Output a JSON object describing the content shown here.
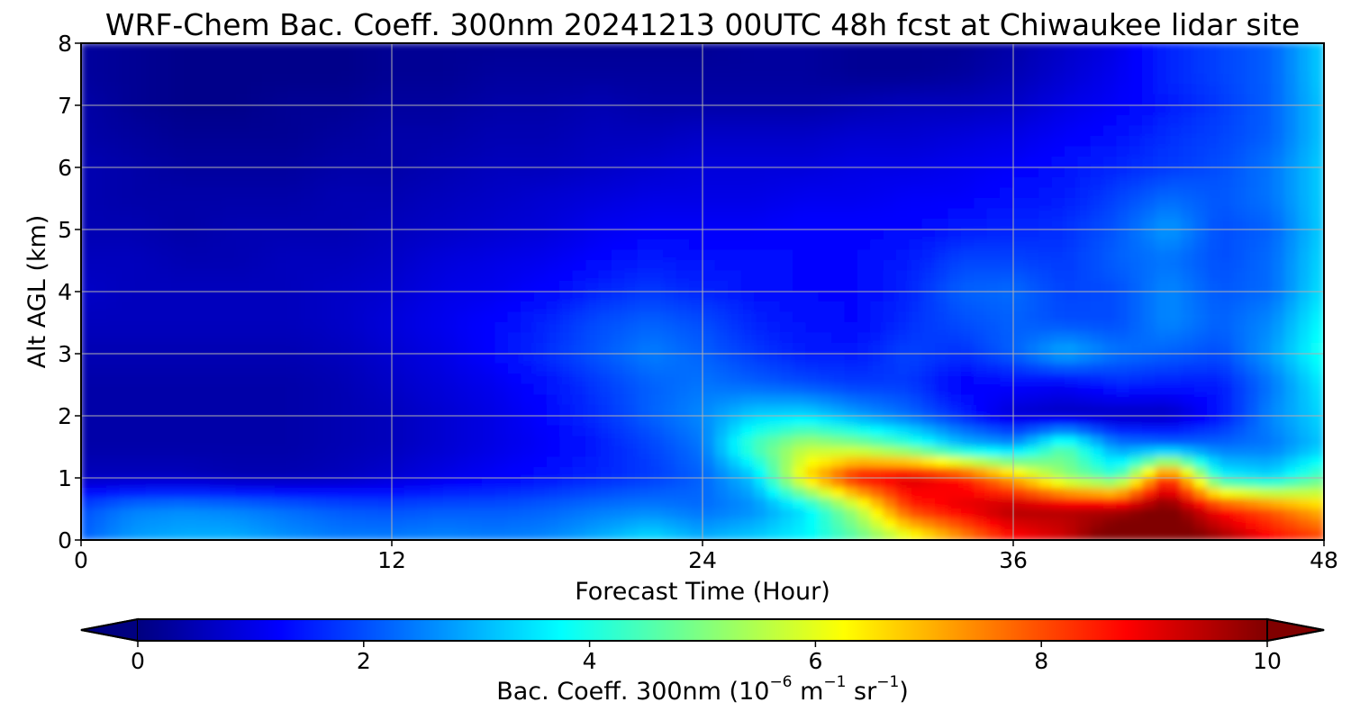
{
  "chart_data": {
    "type": "heatmap",
    "title": "WRF-Chem Bac. Coeff. 300nm  20241213 00UTC 48h fcst at Chiwaukee lidar site",
    "xlabel": "Forecast Time (Hour)",
    "ylabel": "Alt AGL (km)",
    "xlim": [
      0,
      48
    ],
    "ylim": [
      0,
      8
    ],
    "xticks": [
      0,
      12,
      24,
      36,
      48
    ],
    "yticks": [
      0,
      1,
      2,
      3,
      4,
      5,
      6,
      7,
      8
    ],
    "grid": true,
    "colormap": "jet",
    "colorbar": {
      "label_main": "Bac. Coeff. 300nm  (10",
      "exp1": "−6",
      "unit_m": " m",
      "exp2": "−1",
      "unit_sr": " sr",
      "exp3": "−1",
      "label_end": ")",
      "range": [
        0,
        10
      ],
      "ticks": [
        0,
        2,
        4,
        6,
        8,
        10
      ],
      "extend": "both",
      "orientation": "horizontal-bottom"
    },
    "x_hours": [
      0,
      2,
      4,
      6,
      8,
      10,
      12,
      14,
      16,
      18,
      20,
      22,
      24,
      26,
      28,
      30,
      32,
      34,
      36,
      38,
      40,
      42,
      44,
      46,
      48
    ],
    "y_km": [
      0,
      0.5,
      1,
      1.5,
      2,
      2.5,
      3,
      3.5,
      4,
      4.5,
      5,
      5.5,
      6,
      6.5,
      7,
      7.5,
      8
    ],
    "z": [
      [
        2.2,
        2.8,
        3.0,
        3.0,
        2.7,
        2.5,
        2.5,
        2.6,
        2.5,
        2.6,
        3.0,
        3.5,
        3.0,
        3.3,
        3.7,
        4.6,
        5.8,
        7.2,
        8.6,
        9.2,
        10.5,
        10.5,
        9.8,
        8.8,
        8.2
      ],
      [
        2.0,
        2.5,
        2.6,
        2.5,
        2.3,
        2.1,
        2.0,
        2.1,
        2.1,
        2.2,
        2.4,
        2.5,
        2.3,
        2.6,
        3.5,
        5.5,
        8.3,
        9.0,
        9.6,
        9.5,
        9.5,
        10.2,
        8.6,
        7.8,
        6.8
      ],
      [
        0.6,
        0.6,
        0.6,
        0.5,
        0.5,
        0.6,
        0.8,
        1.0,
        1.2,
        1.4,
        1.6,
        1.8,
        2.2,
        3.2,
        6.6,
        8.8,
        9.2,
        8.6,
        7.0,
        5.2,
        4.3,
        8.5,
        3.8,
        3.4,
        4.6
      ],
      [
        0.4,
        0.4,
        0.4,
        0.4,
        0.4,
        0.5,
        0.6,
        0.8,
        1.0,
        1.2,
        1.5,
        1.9,
        2.4,
        4.5,
        5.6,
        5.2,
        4.4,
        3.2,
        2.8,
        4.6,
        2.6,
        2.4,
        2.3,
        2.4,
        3.2
      ],
      [
        0.4,
        0.4,
        0.4,
        0.4,
        0.4,
        0.5,
        0.6,
        0.8,
        1.0,
        1.3,
        1.7,
        2.2,
        2.6,
        3.3,
        3.4,
        2.8,
        2.3,
        1.6,
        0.8,
        0.6,
        0.6,
        0.6,
        1.4,
        2.6,
        3.4
      ],
      [
        0.4,
        0.4,
        0.4,
        0.4,
        0.4,
        0.5,
        0.7,
        0.9,
        1.1,
        1.4,
        1.8,
        2.2,
        2.4,
        2.2,
        2.0,
        1.8,
        1.8,
        1.2,
        1.3,
        1.2,
        1.6,
        1.5,
        1.5,
        2.4,
        3.6
      ],
      [
        0.5,
        0.5,
        0.5,
        0.5,
        0.5,
        0.6,
        0.8,
        1.0,
        1.3,
        1.7,
        2.1,
        2.5,
        2.2,
        1.8,
        1.5,
        1.5,
        1.9,
        1.7,
        2.2,
        3.0,
        2.4,
        2.2,
        2.0,
        2.8,
        4.0
      ],
      [
        0.6,
        0.6,
        0.6,
        0.6,
        0.6,
        0.7,
        0.9,
        1.1,
        1.3,
        1.6,
        2.0,
        2.2,
        2.0,
        1.6,
        1.4,
        1.3,
        1.7,
        2.0,
        2.2,
        2.0,
        2.0,
        2.6,
        2.2,
        2.6,
        3.8
      ],
      [
        0.7,
        0.6,
        0.6,
        0.6,
        0.6,
        0.7,
        0.8,
        1.0,
        1.1,
        1.3,
        1.6,
        1.8,
        1.6,
        1.4,
        1.3,
        1.3,
        1.6,
        2.2,
        2.3,
        1.9,
        2.0,
        2.6,
        2.1,
        2.3,
        3.5
      ],
      [
        0.6,
        0.6,
        0.5,
        0.5,
        0.6,
        0.6,
        0.7,
        0.9,
        1.0,
        1.1,
        1.3,
        1.5,
        1.4,
        1.4,
        1.3,
        1.3,
        1.5,
        1.9,
        1.9,
        1.8,
        2.2,
        2.4,
        2.0,
        2.3,
        3.4
      ],
      [
        0.5,
        0.5,
        0.4,
        0.5,
        0.5,
        0.5,
        0.6,
        0.7,
        0.8,
        0.9,
        1.1,
        1.2,
        1.2,
        1.2,
        1.3,
        1.3,
        1.3,
        1.5,
        1.6,
        1.7,
        2.1,
        2.8,
        2.0,
        2.2,
        3.3
      ],
      [
        0.5,
        0.4,
        0.4,
        0.4,
        0.4,
        0.5,
        0.5,
        0.6,
        0.7,
        0.8,
        0.9,
        1.0,
        1.0,
        1.0,
        1.1,
        1.1,
        1.2,
        1.2,
        1.4,
        1.5,
        1.9,
        2.3,
        2.1,
        2.4,
        3.3
      ],
      [
        0.5,
        0.4,
        0.3,
        0.3,
        0.3,
        0.4,
        0.4,
        0.5,
        0.6,
        0.6,
        0.7,
        0.8,
        0.9,
        0.9,
        0.9,
        1.0,
        1.0,
        1.1,
        1.2,
        1.4,
        1.6,
        1.8,
        2.0,
        2.4,
        3.3
      ],
      [
        0.4,
        0.3,
        0.2,
        0.2,
        0.2,
        0.3,
        0.4,
        0.4,
        0.5,
        0.5,
        0.6,
        0.6,
        0.7,
        0.7,
        0.7,
        0.8,
        0.8,
        0.9,
        1.0,
        1.2,
        1.4,
        1.7,
        1.9,
        2.2,
        3.2
      ],
      [
        0.4,
        0.2,
        0.1,
        0.1,
        0.2,
        0.2,
        0.3,
        0.3,
        0.4,
        0.4,
        0.5,
        0.4,
        0.4,
        0.4,
        0.4,
        0.5,
        0.6,
        0.6,
        0.7,
        1.0,
        1.2,
        1.5,
        1.8,
        2.2,
        3.2
      ],
      [
        0.3,
        0.2,
        0.1,
        0.1,
        0.1,
        0.1,
        0.2,
        0.2,
        0.3,
        0.3,
        0.3,
        0.3,
        0.3,
        0.3,
        0.3,
        0.2,
        0.2,
        0.3,
        0.5,
        0.8,
        1.1,
        1.6,
        1.9,
        2.2,
        3.3
      ],
      [
        0.3,
        0.2,
        0.1,
        0.1,
        0.1,
        0.1,
        0.2,
        0.2,
        0.2,
        0.2,
        0.2,
        0.2,
        0.2,
        0.3,
        0.3,
        0.2,
        0.2,
        0.2,
        0.4,
        0.7,
        1.0,
        1.6,
        1.9,
        2.2,
        3.3
      ]
    ]
  }
}
